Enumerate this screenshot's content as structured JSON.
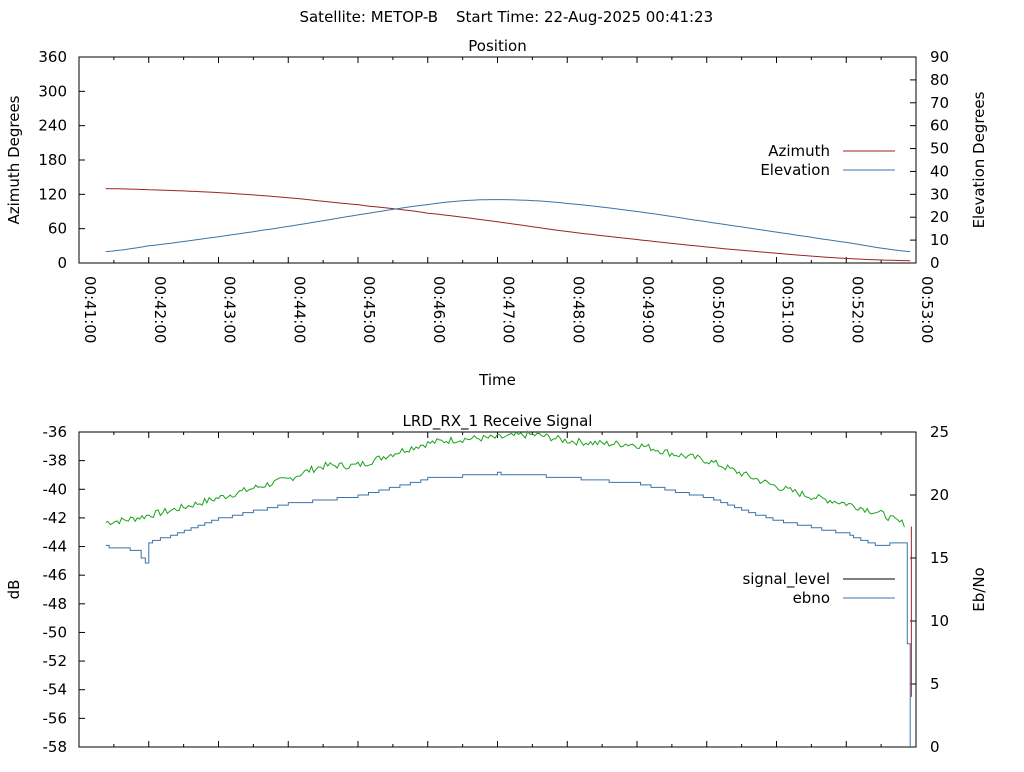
{
  "header": {
    "satellite": "Satellite: METOP-B",
    "start_time": "Start Time: 22-Aug-2025 00:41:23"
  },
  "chart_data": [
    {
      "type": "line",
      "title": "Position",
      "xlabel": "Time",
      "ylabel": "Azimuth Degrees",
      "y2label": "Elevation Degrees",
      "xlim": [
        "00:41:00",
        "00:53:00"
      ],
      "ylim": [
        0,
        360
      ],
      "y2lim": [
        0,
        90
      ],
      "x_tick_labels": [
        "00:41:00",
        "00:42:00",
        "00:43:00",
        "00:44:00",
        "00:45:00",
        "00:46:00",
        "00:47:00",
        "00:48:00",
        "00:49:00",
        "00:50:00",
        "00:51:00",
        "00:52:00",
        "00:53:00"
      ],
      "y_tick_labels": [
        "0",
        "60",
        "120",
        "180",
        "240",
        "300",
        "360"
      ],
      "y2_tick_labels": [
        "0",
        "10",
        "20",
        "30",
        "40",
        "50",
        "60",
        "70",
        "80",
        "90"
      ],
      "legend_position": "right",
      "grid": false,
      "series": [
        {
          "name": "Azimuth",
          "axis": "left",
          "color": "#a0222a",
          "x": [
            "00:41:23",
            "00:42:00",
            "00:43:00",
            "00:44:00",
            "00:45:00",
            "00:45:30",
            "00:46:00",
            "00:47:00",
            "00:48:00",
            "00:49:00",
            "00:50:00",
            "00:51:00",
            "00:52:00",
            "00:52:55"
          ],
          "y": [
            130,
            128,
            123,
            114,
            102,
            95,
            87,
            72,
            55,
            41,
            28,
            17,
            8,
            4
          ]
        },
        {
          "name": "Elevation",
          "axis": "right",
          "color": "#3a74a8",
          "x": [
            "00:41:23",
            "00:42:00",
            "00:43:00",
            "00:44:00",
            "00:45:00",
            "00:46:00",
            "00:46:40",
            "00:47:20",
            "00:48:00",
            "00:49:00",
            "00:50:00",
            "00:51:00",
            "00:52:00",
            "00:52:55"
          ],
          "y": [
            5,
            7.5,
            11.5,
            16,
            21,
            25.5,
            27.5,
            27.5,
            26,
            22.5,
            18,
            13.5,
            9,
            5
          ]
        }
      ]
    },
    {
      "type": "line",
      "title": "LRD_RX_1 Receive Signal",
      "ylabel": "dB",
      "y2label": "Eb/No",
      "ylim": [
        -58,
        -36
      ],
      "y2lim": [
        0,
        25
      ],
      "y_tick_labels": [
        "-36",
        "-38",
        "-40",
        "-42",
        "-44",
        "-46",
        "-48",
        "-50",
        "-52",
        "-54",
        "-56",
        "-58"
      ],
      "y2_tick_labels": [
        "0",
        "5",
        "10",
        "15",
        "20",
        "25"
      ],
      "legend_position": "right",
      "grid": false,
      "series": [
        {
          "name": "signal_level",
          "axis": "left",
          "color": "#1aa31a",
          "x": [
            "00:41:23",
            "00:42:00",
            "00:43:00",
            "00:44:00",
            "00:44:30",
            "00:45:00",
            "00:45:30",
            "00:46:00",
            "00:46:30",
            "00:47:00",
            "00:47:30",
            "00:48:00",
            "00:48:30",
            "00:49:00",
            "00:49:30",
            "00:50:00",
            "00:50:30",
            "00:51:00",
            "00:51:30",
            "00:52:00",
            "00:52:30",
            "00:52:50"
          ],
          "y": [
            -42.3,
            -41.8,
            -40.6,
            -39.3,
            -38.4,
            -38.3,
            -37.5,
            -36.8,
            -36.5,
            -36.4,
            -36.2,
            -36.6,
            -36.8,
            -36.9,
            -37.5,
            -38.0,
            -38.9,
            -39.8,
            -40.5,
            -41.0,
            -41.7,
            -42.4
          ]
        },
        {
          "name": "ebno",
          "axis": "right",
          "color": "#3a74a8",
          "x": [
            "00:41:23",
            "00:41:50",
            "00:41:57",
            "00:42:00",
            "00:42:10",
            "00:43:00",
            "00:44:00",
            "00:45:00",
            "00:45:30",
            "00:46:00",
            "00:47:00",
            "00:48:00",
            "00:49:00",
            "00:50:00",
            "00:50:30",
            "00:51:00",
            "00:52:00",
            "00:52:25",
            "00:52:50",
            "00:52:55"
          ],
          "y": [
            15.9,
            15.6,
            14.5,
            16.2,
            16.5,
            18.1,
            19.3,
            19.9,
            20.6,
            21.3,
            21.7,
            21.4,
            20.9,
            19.8,
            18.8,
            18.0,
            16.9,
            16.0,
            16.2,
            0
          ]
        }
      ]
    }
  ]
}
